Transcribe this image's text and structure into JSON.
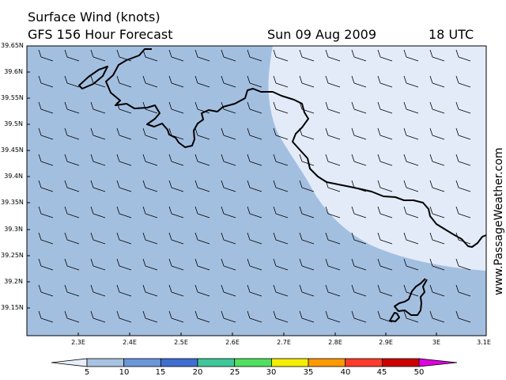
{
  "header": {
    "title": "Surface Wind (knots)",
    "forecast": "GFS 156 Hour Forecast",
    "date": "Sun 09 Aug 2009",
    "time": "18 UTC"
  },
  "credit": "www.PassageWeather.com",
  "map": {
    "lat_labels": [
      "39.65N",
      "39.6N",
      "39.55N",
      "39.5N",
      "39.45N",
      "39.4N",
      "39.35N",
      "39.3N",
      "39.25N",
      "39.2N",
      "39.15N"
    ],
    "lon_labels": [
      "2.3E",
      "2.4E",
      "2.5E",
      "2.6E",
      "2.7E",
      "2.8E",
      "2.9E",
      "3E",
      "3.1E"
    ],
    "wind_shading": {
      "sea_low": "#e3ebf8",
      "sea_mid": "#a3bfe0"
    },
    "wind_barbs": "light-barb-icons"
  },
  "colorbar": {
    "ticks": [
      "5",
      "10",
      "15",
      "20",
      "25",
      "30",
      "35",
      "40",
      "45",
      "50"
    ],
    "colors": [
      "#e8eef9",
      "#a8c3e2",
      "#6b97d9",
      "#3e6fd0",
      "#3ec79a",
      "#4fe060",
      "#f5ee00",
      "#ff9900",
      "#ff3b2b",
      "#cc0000",
      "#e000e0"
    ]
  }
}
